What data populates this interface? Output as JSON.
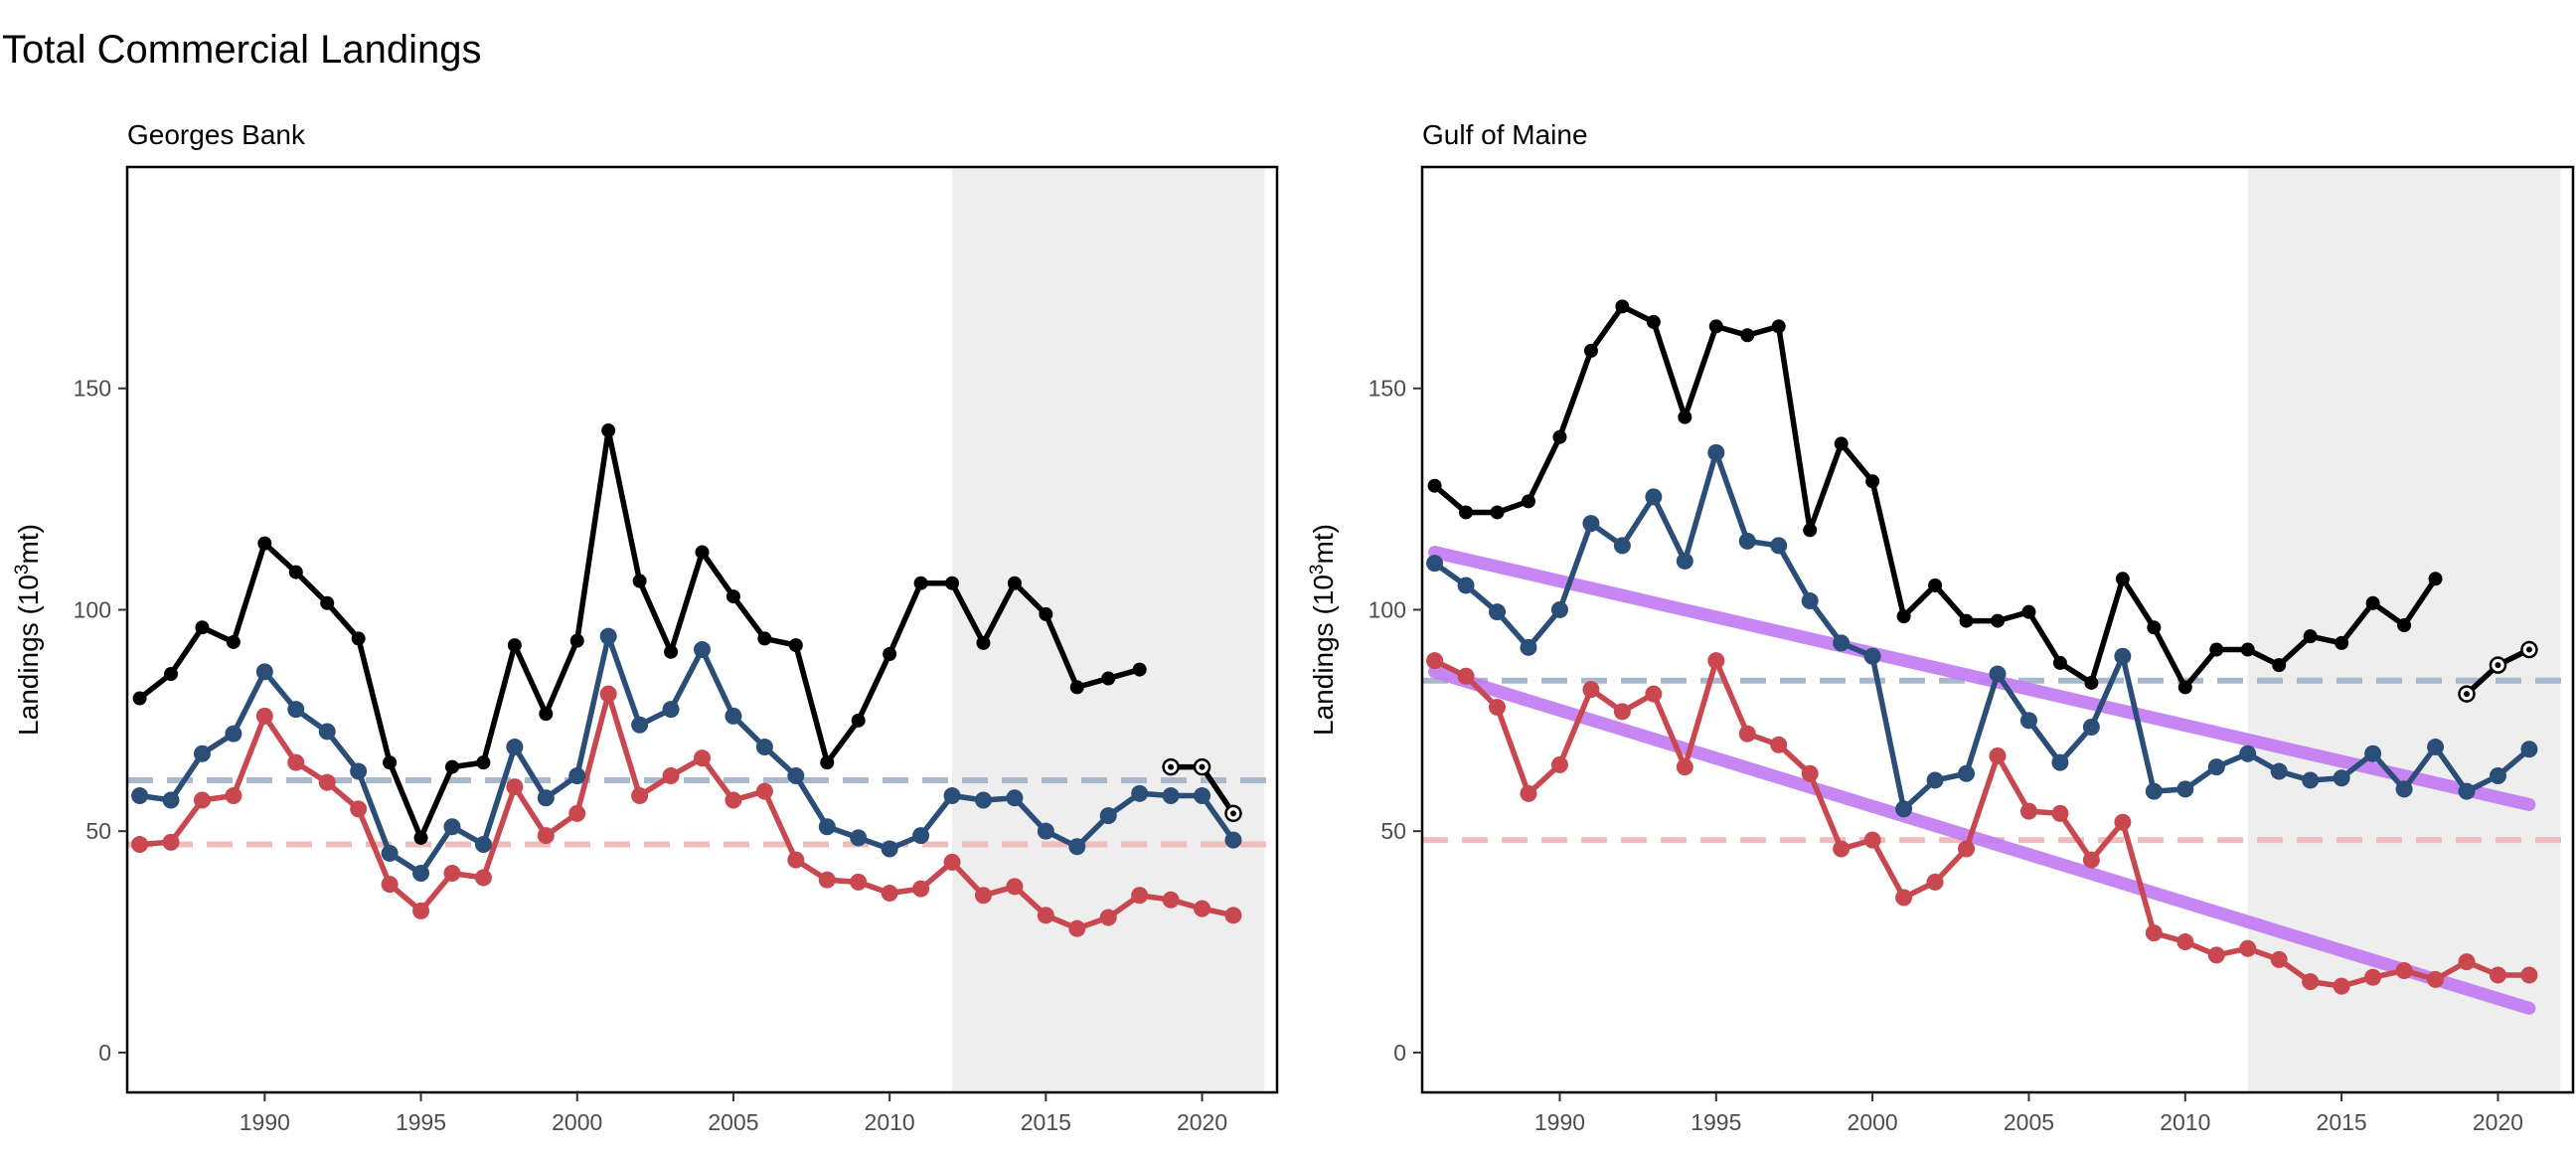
{
  "title": "Total Commercial Landings",
  "colors": {
    "total": "#000000",
    "blue": "#2b4e78",
    "red": "#c9474e",
    "blue_ref": "#a9b8cd",
    "red_ref": "#efbcbd",
    "trend": "#c27cf2",
    "shade": "#eeeeee"
  },
  "chart_data": [
    {
      "type": "line",
      "title": "Georges Bank",
      "ylabel": "Landings (10³mt)",
      "xlim": [
        1985.6,
        2022.4
      ],
      "ylim": [
        -9,
        200
      ],
      "xticks": [
        1990,
        1995,
        2000,
        2005,
        2010,
        2015,
        2020
      ],
      "yticks": [
        0,
        50,
        100,
        150
      ],
      "shade": [
        2012,
        2022
      ],
      "grid": false,
      "series": [
        {
          "key": "total",
          "x": [
            1986,
            1987,
            1988,
            1989,
            1990,
            1991,
            1992,
            1993,
            1994,
            1995,
            1996,
            1997,
            1998,
            1999,
            2000,
            2001,
            2002,
            2003,
            2004,
            2005,
            2006,
            2007,
            2008,
            2009,
            2010,
            2011,
            2012,
            2013,
            2014,
            2015,
            2016,
            2017,
            2018
          ],
          "values": [
            80,
            85.5,
            96,
            92.7,
            115,
            108.5,
            101.5,
            93.5,
            65.5,
            48.5,
            64.5,
            65.5,
            92,
            76.5,
            93,
            140.5,
            106.5,
            90.5,
            113,
            103,
            93.5,
            92,
            65.5,
            75,
            90,
            106,
            106,
            92.5,
            106,
            99,
            82.5,
            84.5,
            86.5
          ]
        },
        {
          "key": "total-projected",
          "x": [
            2019,
            2020,
            2021
          ],
          "values": [
            64.5,
            64.5,
            54
          ]
        },
        {
          "key": "blue",
          "x": [
            1986,
            1987,
            1988,
            1989,
            1990,
            1991,
            1992,
            1993,
            1994,
            1995,
            1996,
            1997,
            1998,
            1999,
            2000,
            2001,
            2002,
            2003,
            2004,
            2005,
            2006,
            2007,
            2008,
            2009,
            2010,
            2011,
            2012,
            2013,
            2014,
            2015,
            2016,
            2017,
            2018,
            2019,
            2020,
            2021
          ],
          "values": [
            58,
            57,
            67.5,
            72,
            86,
            77.5,
            72.5,
            63.5,
            45,
            40.5,
            51,
            47,
            69,
            57.5,
            62.5,
            94,
            74,
            77.5,
            91,
            76,
            69,
            62.5,
            51,
            48.5,
            46,
            49,
            58,
            57,
            57.5,
            50,
            46.5,
            53.5,
            58.5,
            58,
            58,
            48
          ]
        },
        {
          "key": "red",
          "x": [
            1986,
            1987,
            1988,
            1989,
            1990,
            1991,
            1992,
            1993,
            1994,
            1995,
            1996,
            1997,
            1998,
            1999,
            2000,
            2001,
            2002,
            2003,
            2004,
            2005,
            2006,
            2007,
            2008,
            2009,
            2010,
            2011,
            2012,
            2013,
            2014,
            2015,
            2016,
            2017,
            2018,
            2019,
            2020,
            2021
          ],
          "values": [
            47,
            47.5,
            57,
            58,
            76,
            65.5,
            61,
            55,
            38,
            32,
            40.5,
            39.5,
            60,
            49,
            54,
            81,
            58,
            62.5,
            66.5,
            57,
            59,
            43.5,
            39,
            38.5,
            36,
            37,
            43,
            35.5,
            37.5,
            31,
            28,
            30.5,
            35.5,
            34.5,
            32.5,
            31
          ]
        }
      ],
      "reference_lines": [
        {
          "key": "blue_ref",
          "value": 61.5
        },
        {
          "key": "red_ref",
          "value": 47
        }
      ],
      "trend_lines": []
    },
    {
      "type": "line",
      "title": "Gulf of Maine",
      "ylabel": "Landings (10³mt)",
      "xlim": [
        1985.6,
        2022.4
      ],
      "ylim": [
        -9,
        200
      ],
      "xticks": [
        1990,
        1995,
        2000,
        2005,
        2010,
        2015,
        2020
      ],
      "yticks": [
        0,
        50,
        100,
        150
      ],
      "shade": [
        2012,
        2022
      ],
      "grid": false,
      "series": [
        {
          "key": "total",
          "x": [
            1986,
            1987,
            1988,
            1989,
            1990,
            1991,
            1992,
            1993,
            1994,
            1995,
            1996,
            1997,
            1998,
            1999,
            2000,
            2001,
            2002,
            2003,
            2004,
            2005,
            2006,
            2007,
            2008,
            2009,
            2010,
            2011,
            2012,
            2013,
            2014,
            2015,
            2016,
            2017,
            2018
          ],
          "values": [
            128,
            122,
            122,
            124.5,
            139,
            158.5,
            168.5,
            165,
            143.5,
            164,
            162,
            164,
            118,
            137.5,
            129,
            98.5,
            105.5,
            97.5,
            97.5,
            99.5,
            88,
            83.5,
            107,
            96,
            82.5,
            91,
            91,
            87.5,
            94,
            92.5,
            101.5,
            96.5,
            107
          ]
        },
        {
          "key": "total-projected",
          "x": [
            2019,
            2020,
            2021
          ],
          "values": [
            81,
            87.5,
            91
          ]
        },
        {
          "key": "blue",
          "x": [
            1986,
            1987,
            1988,
            1989,
            1990,
            1991,
            1992,
            1993,
            1994,
            1995,
            1996,
            1997,
            1998,
            1999,
            2000,
            2001,
            2002,
            2003,
            2004,
            2005,
            2006,
            2007,
            2008,
            2009,
            2010,
            2011,
            2012,
            2013,
            2014,
            2015,
            2016,
            2017,
            2018,
            2019,
            2020,
            2021
          ],
          "values": [
            110.5,
            105.5,
            99.5,
            91.5,
            100,
            119.5,
            114.5,
            125.5,
            111,
            135.5,
            115.5,
            114.5,
            102,
            92.5,
            89.5,
            55,
            61.5,
            63,
            85.5,
            75,
            65.5,
            73.5,
            89.5,
            59,
            59.5,
            64.5,
            67.5,
            63.5,
            61.5,
            62,
            67.5,
            59.5,
            69,
            59,
            62.5,
            68.5
          ]
        },
        {
          "key": "red",
          "x": [
            1986,
            1987,
            1988,
            1989,
            1990,
            1991,
            1992,
            1993,
            1994,
            1995,
            1996,
            1997,
            1998,
            1999,
            2000,
            2001,
            2002,
            2003,
            2004,
            2005,
            2006,
            2007,
            2008,
            2009,
            2010,
            2011,
            2012,
            2013,
            2014,
            2015,
            2016,
            2017,
            2018,
            2019,
            2020,
            2021
          ],
          "values": [
            88.5,
            85,
            78,
            58.5,
            65,
            82,
            77,
            81,
            64.5,
            88.5,
            72,
            69.5,
            63,
            46,
            48,
            35,
            38.5,
            46,
            67,
            54.5,
            54,
            43.5,
            52,
            27,
            25,
            22,
            23.5,
            21,
            16,
            15,
            17,
            18.5,
            16.5,
            20.5,
            17.5,
            17.5
          ]
        }
      ],
      "reference_lines": [
        {
          "key": "blue_ref",
          "value": 84
        },
        {
          "key": "red_ref",
          "value": 48
        }
      ],
      "trend_lines": [
        {
          "x": [
            1986,
            2021
          ],
          "values": [
            113,
            56
          ]
        },
        {
          "x": [
            1986,
            2021
          ],
          "values": [
            86,
            10
          ]
        }
      ]
    }
  ]
}
